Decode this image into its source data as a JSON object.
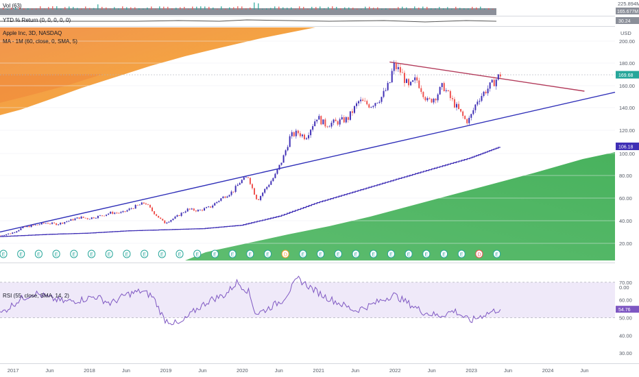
{
  "colors": {
    "up": "#26a69a",
    "down": "#ef5350",
    "ma": "#3f2fb5",
    "trend_support": "#2f2fb8",
    "trend_resist": "#b23a5a",
    "rsi_line": "#7e57c2",
    "rsi_band": "#efe9f9",
    "orange": "#f39c2b",
    "orange_dark": "#f0883a",
    "green": "#3fae55",
    "price_badge": "#26a69a",
    "ma_badge": "#3f2fb5",
    "rsi_badge": "#7e57c2"
  },
  "volume_pane": {
    "label": "Vol (63)",
    "scale_label": "225.894M",
    "badge_value": "165.677M"
  },
  "ytd_pane": {
    "label": "YTD % Return (0, 0, 0, 0, 0)",
    "badge_value": "30.24"
  },
  "main_pane": {
    "title": "Apple Inc, 3D, NASDAQ",
    "ma_label": "MA - 1M (60, close, 0, SMA, 5)",
    "currency": "USD",
    "last_price": "169.68",
    "ma_value": "106.18",
    "earnings_marker": "E",
    "dividend_marker": "D"
  },
  "rsi_pane": {
    "label": "RSI (55, close, SMA, 14, 2)",
    "badge_value": "54.76",
    "top_label": "0.00"
  },
  "chart_data": {
    "type": "line",
    "title": "Apple Inc, 3D, NASDAQ",
    "ylabel": "USD",
    "ylim": [
      0,
      210
    ],
    "y_ticks": [
      20,
      40,
      60,
      80,
      100,
      120,
      140,
      160,
      180,
      200
    ],
    "y_tick_labels": [
      "20.00",
      "40.00",
      "60.00",
      "80.00",
      "100.00",
      "120.00",
      "140.00",
      "160.00",
      "180.00",
      "200.00"
    ],
    "x_tick_labels": [
      "2017",
      "Jun",
      "2018",
      "Jun",
      "2019",
      "Jun",
      "2020",
      "Jun",
      "2021",
      "Jun",
      "2022",
      "Jun",
      "2023",
      "Jun",
      "2024",
      "Jun"
    ],
    "x_ticks": [
      2017.0,
      2017.5,
      2018.0,
      2018.5,
      2019.0,
      2019.5,
      2020.0,
      2020.5,
      2021.0,
      2021.5,
      2022.0,
      2022.5,
      2023.0,
      2023.5,
      2024.0,
      2024.5
    ],
    "xlim": [
      2016.85,
      2024.9
    ],
    "series": [
      {
        "name": "",
        "x": [
          2016.85,
          2017.0,
          2017.15,
          2017.3,
          2017.45,
          2017.6,
          2017.75,
          2017.9,
          2018.0,
          2018.15,
          2018.3,
          2018.45,
          2018.6,
          2018.75,
          2018.85,
          2019.0,
          2019.15,
          2019.3,
          2019.45,
          2019.6,
          2019.75,
          2019.9,
          2020.0,
          2020.1,
          2020.15,
          2020.22,
          2020.3,
          2020.45,
          2020.55,
          2020.65,
          2020.75,
          2020.85,
          2021.0,
          2021.1,
          2021.25,
          2021.4,
          2021.55,
          2021.7,
          2021.85,
          2021.95,
          2022.0,
          2022.1,
          2022.2,
          2022.3,
          2022.45,
          2022.55,
          2022.65,
          2022.75,
          2022.85,
          2022.95,
          2023.0,
          2023.1,
          2023.2,
          2023.3,
          2023.4
        ],
        "y": [
          27,
          29,
          34,
          36,
          38,
          37,
          40,
          43,
          42,
          44,
          47,
          47,
          52,
          56,
          48,
          38,
          43,
          50,
          49,
          52,
          60,
          66,
          75,
          79,
          69,
          58,
          66,
          80,
          95,
          115,
          118,
          114,
          132,
          125,
          127,
          130,
          146,
          142,
          150,
          162,
          178,
          172,
          158,
          166,
          145,
          150,
          160,
          148,
          138,
          128,
          130,
          147,
          155,
          162,
          170
        ]
      },
      {
        "name": "MA - 1M (60, close, 0, SMA, 5)",
        "x": [
          2016.85,
          2017.5,
          2018.0,
          2018.5,
          2019.0,
          2019.5,
          2020.0,
          2020.5,
          2021.0,
          2021.5,
          2022.0,
          2022.5,
          2023.0,
          2023.4
        ],
        "y": [
          26,
          28,
          29,
          31,
          32,
          33,
          36,
          44,
          56,
          66,
          76,
          86,
          96,
          106
        ]
      }
    ],
    "trendlines": [
      {
        "name": "support",
        "x": [
          2016.85,
          2024.9
        ],
        "y": [
          30,
          154
        ]
      },
      {
        "name": "resistance",
        "x": [
          2021.95,
          2024.5
        ],
        "y": [
          181,
          155
        ]
      }
    ],
    "rsi": {
      "label": "RSI (55, close, SMA, 14, 2)",
      "ylim": [
        25,
        80
      ],
      "y_tick_labels": [
        "30.00",
        "40.00",
        "50.00",
        "60.00",
        "70.00"
      ],
      "y_ticks": [
        30,
        40,
        50,
        60,
        70
      ],
      "band": [
        50,
        70
      ],
      "x": [
        2016.85,
        2017.1,
        2017.3,
        2017.5,
        2017.7,
        2017.9,
        2018.1,
        2018.3,
        2018.5,
        2018.7,
        2018.85,
        2019.0,
        2019.2,
        2019.4,
        2019.6,
        2019.8,
        2019.95,
        2020.1,
        2020.2,
        2020.35,
        2020.55,
        2020.75,
        2020.95,
        2021.1,
        2021.3,
        2021.5,
        2021.7,
        2021.9,
        2022.0,
        2022.2,
        2022.4,
        2022.6,
        2022.8,
        2023.0,
        2023.2,
        2023.4
      ],
      "y": [
        52,
        60,
        64,
        61,
        59,
        60,
        62,
        58,
        63,
        65,
        62,
        49,
        46,
        54,
        60,
        63,
        70,
        65,
        52,
        55,
        60,
        72,
        66,
        62,
        58,
        54,
        57,
        61,
        63,
        58,
        53,
        51,
        54,
        48,
        52,
        55
      ]
    }
  }
}
